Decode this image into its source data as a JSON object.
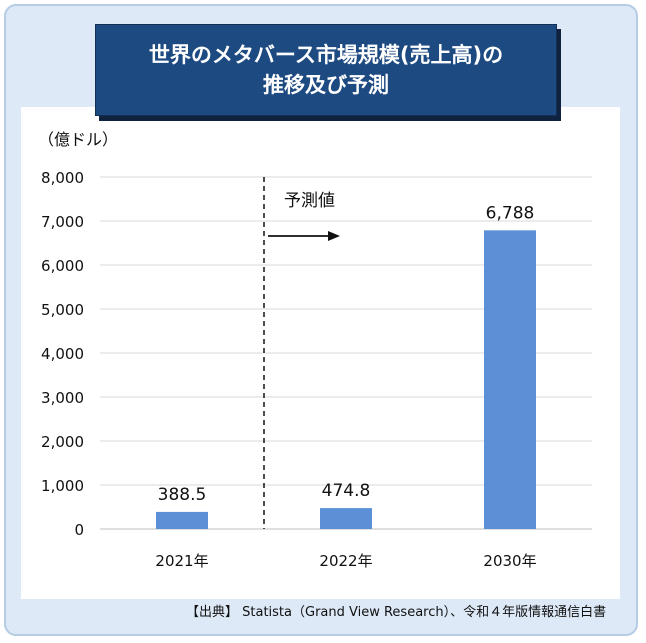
{
  "title": {
    "line1": "世界のメタバース市場規模(売上高)の",
    "line2": "推移及び予測"
  },
  "source": "【出典】 Statista（Grand View Research）、令和４年版情報通信白書",
  "colors": {
    "bar": "#5b8fd6",
    "title_bg": "#1e4a82",
    "outer_bg": "#dde9f6",
    "grid": "#d9d9d9"
  },
  "chart_data": {
    "type": "bar",
    "unit_label": "（億ドル）",
    "categories": [
      "2021年",
      "2022年",
      "2030年"
    ],
    "values": [
      388.5,
      474.8,
      6788
    ],
    "value_labels": [
      "388.5",
      "474.8",
      "6,788"
    ],
    "ylim": [
      0,
      8000
    ],
    "yticks": [
      0,
      1000,
      2000,
      3000,
      4000,
      5000,
      6000,
      7000,
      8000
    ],
    "ytick_labels": [
      "0",
      "1,000",
      "2,000",
      "3,000",
      "4,000",
      "5,000",
      "6,000",
      "7,000",
      "8,000"
    ],
    "grid": true,
    "annotation": {
      "text": "予測値",
      "divider_between": [
        "2021年",
        "2022年"
      ],
      "arrow_direction": "right"
    }
  }
}
